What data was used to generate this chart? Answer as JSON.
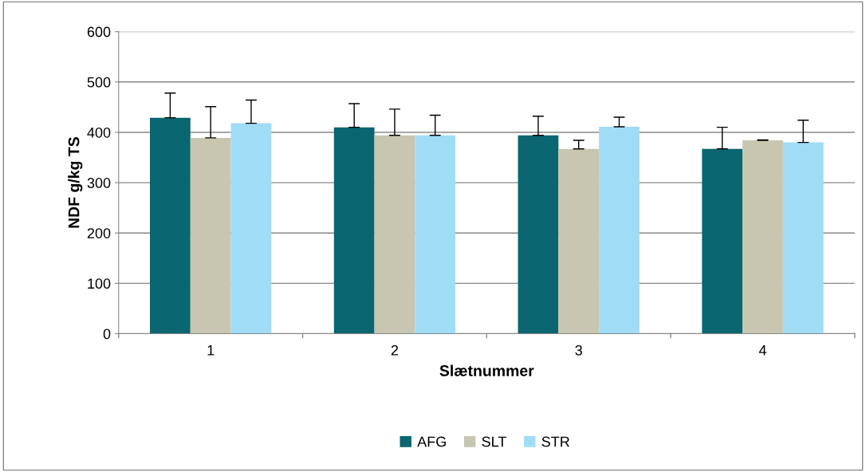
{
  "chart_data": {
    "type": "bar",
    "xlabel": "Slætnummer",
    "ylabel": "NDF g/kg TS",
    "categories": [
      "1",
      "2",
      "3",
      "4"
    ],
    "series": [
      {
        "name": "AFG",
        "color": "#0a6670",
        "values": [
          429,
          410,
          394,
          367
        ],
        "errors": [
          [
            429,
            478
          ],
          [
            410,
            457
          ],
          [
            394,
            432
          ],
          [
            367,
            410
          ]
        ]
      },
      {
        "name": "SLT",
        "color": "#c8c6b0",
        "values": [
          389,
          394,
          367,
          384
        ],
        "errors": [
          [
            389,
            451
          ],
          [
            394,
            446
          ],
          [
            367,
            384
          ],
          [
            384,
            385
          ]
        ]
      },
      {
        "name": "STR",
        "color": "#a0dcf6",
        "values": [
          418,
          394,
          411,
          380
        ],
        "errors": [
          [
            418,
            464
          ],
          [
            394,
            434
          ],
          [
            411,
            430
          ],
          [
            380,
            424
          ]
        ]
      }
    ],
    "ylim": [
      0,
      600
    ],
    "yticks": [
      0,
      100,
      200,
      300,
      400,
      500,
      600
    ],
    "grid": "y",
    "legend": "bottom"
  }
}
